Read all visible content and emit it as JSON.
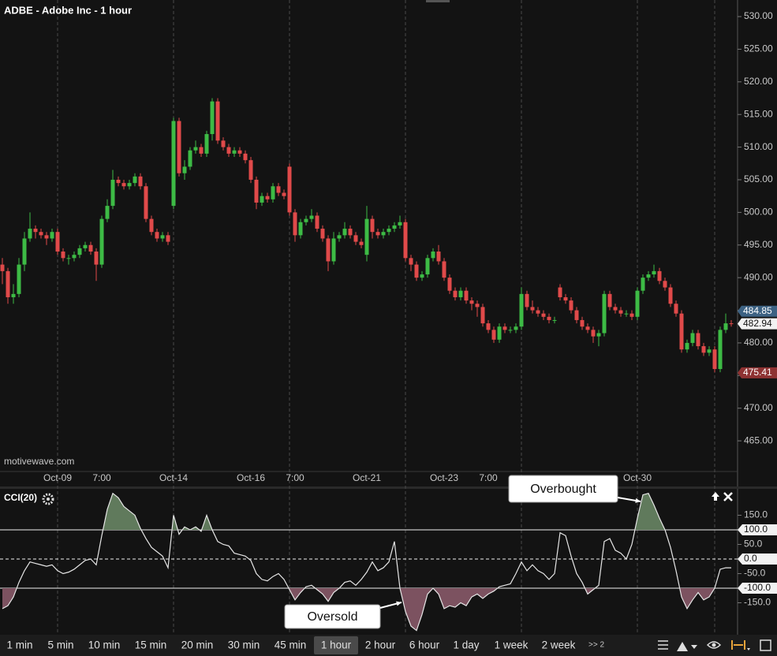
{
  "chart_data": [
    {
      "type": "candlestick",
      "title": "ADBE - Adobe Inc - 1 hour",
      "watermark": "motivewave.com",
      "up_color": "#3dbb45",
      "down_color": "#e04a4a",
      "ylim": [
        460.3,
        532.54
      ],
      "yticks": [
        {
          "value": 465,
          "label": "465.00"
        },
        {
          "value": 470,
          "label": "470.00"
        },
        {
          "value": 475,
          "label": "475.00"
        },
        {
          "value": 480,
          "label": "480.00"
        },
        {
          "value": 485,
          "label": "485.00"
        },
        {
          "value": 490,
          "label": "490.00"
        },
        {
          "value": 495,
          "label": "495.00"
        },
        {
          "value": 500,
          "label": "500.00"
        },
        {
          "value": 505,
          "label": "505.00"
        },
        {
          "value": 510,
          "label": "510.00"
        },
        {
          "value": 515,
          "label": "515.00"
        },
        {
          "value": 520,
          "label": "520.00"
        },
        {
          "value": 525,
          "label": "525.00"
        },
        {
          "value": 530,
          "label": "530.00"
        }
      ],
      "price_markers": [
        484.85,
        482.94,
        475.41
      ],
      "price_marker_colors": [
        "#3d6283",
        "#f2f2f2",
        "#8e3232"
      ],
      "categories": [
        null,
        null,
        null,
        null,
        null,
        null,
        null,
        null,
        null,
        null,
        "Oct-09",
        null,
        null,
        null,
        null,
        null,
        null,
        null,
        "7:00",
        null,
        null,
        null,
        null,
        null,
        null,
        null,
        null,
        null,
        null,
        null,
        null,
        "Oct-14",
        null,
        null,
        null,
        null,
        null,
        null,
        null,
        null,
        null,
        null,
        null,
        null,
        null,
        "Oct-16",
        null,
        null,
        null,
        null,
        null,
        null,
        null,
        "7:00",
        null,
        null,
        null,
        null,
        null,
        null,
        null,
        null,
        null,
        null,
        null,
        null,
        "Oct-21",
        null,
        null,
        null,
        null,
        null,
        null,
        null,
        null,
        null,
        null,
        null,
        null,
        null,
        "Oct-23",
        null,
        null,
        null,
        null,
        null,
        null,
        null,
        "7:00",
        null,
        null,
        null,
        null,
        null,
        null,
        null,
        null,
        null,
        null,
        null,
        null,
        null,
        null,
        null,
        null,
        null,
        null,
        null,
        null,
        null,
        null,
        null,
        null,
        null,
        null,
        "Oct-30",
        null,
        null,
        null,
        null,
        null,
        null,
        null,
        null,
        null,
        null,
        null,
        null,
        null,
        null,
        null,
        null,
        null
      ],
      "ohlc": [
        [
          492,
          493,
          489,
          491
        ],
        [
          491,
          491.5,
          486,
          487
        ],
        [
          487,
          489,
          486,
          487.5
        ],
        [
          487.5,
          493,
          487,
          492
        ],
        [
          492,
          497,
          491,
          496
        ],
        [
          496,
          500,
          495.5,
          497.5
        ],
        [
          497.5,
          498,
          496,
          497
        ],
        [
          497,
          497.5,
          496,
          496.5
        ],
        [
          496.5,
          497,
          495,
          496
        ],
        [
          496,
          497.5,
          495.5,
          497
        ],
        [
          497,
          497.5,
          493.5,
          494
        ],
        [
          494,
          494.5,
          492.5,
          493
        ],
        [
          493,
          493.5,
          492,
          493
        ],
        [
          493,
          494,
          492.5,
          493.5
        ],
        [
          493.5,
          495,
          493,
          494.5
        ],
        [
          494.5,
          495.5,
          494,
          495
        ],
        [
          495,
          495.5,
          493.5,
          494
        ],
        [
          494,
          494.5,
          489.5,
          492
        ],
        [
          492,
          499.5,
          491.5,
          499
        ],
        [
          499,
          502,
          498.5,
          501
        ],
        [
          501,
          506.5,
          500.5,
          505
        ],
        [
          505,
          505.5,
          504,
          504.5
        ],
        [
          504.5,
          505,
          503.5,
          504
        ],
        [
          504,
          505,
          503.5,
          504.5
        ],
        [
          504.5,
          506,
          504,
          505.5
        ],
        [
          505.5,
          506,
          503.5,
          504
        ],
        [
          504,
          504.5,
          498.5,
          499
        ],
        [
          499,
          499.5,
          496.5,
          497
        ],
        [
          497,
          497.5,
          495.5,
          496
        ],
        [
          496,
          497,
          495.5,
          496.5
        ],
        [
          496.5,
          497,
          495,
          495.5
        ],
        [
          501,
          514.5,
          500.5,
          514
        ],
        [
          514,
          514.5,
          505.5,
          506
        ],
        [
          506,
          508,
          505,
          507
        ],
        [
          507,
          510,
          506.5,
          509.5
        ],
        [
          509.5,
          511,
          509,
          510
        ],
        [
          510,
          510.5,
          508.5,
          509
        ],
        [
          509,
          512.5,
          508.5,
          512
        ],
        [
          512,
          517.5,
          511,
          517
        ],
        [
          517,
          517.5,
          510.5,
          511
        ],
        [
          511,
          511.5,
          509.5,
          510
        ],
        [
          510,
          510.5,
          508.5,
          509
        ],
        [
          509,
          510,
          508.5,
          509.5
        ],
        [
          509.5,
          510,
          508.5,
          509
        ],
        [
          509,
          509.5,
          507.5,
          508
        ],
        [
          508,
          508.5,
          504.5,
          505
        ],
        [
          505,
          505.5,
          500.5,
          501.5
        ],
        [
          501.5,
          503,
          501,
          502.5
        ],
        [
          502.5,
          503,
          501.5,
          502
        ],
        [
          502,
          504.5,
          501.5,
          504
        ],
        [
          504,
          504.5,
          502.5,
          503
        ],
        [
          503,
          503.5,
          502,
          502.5
        ],
        [
          507,
          507.5,
          499.5,
          500
        ],
        [
          500,
          500.5,
          495.5,
          496.5
        ],
        [
          496.5,
          499,
          496,
          498.5
        ],
        [
          498.5,
          499.5,
          498,
          499
        ],
        [
          499,
          500.5,
          498.5,
          499.5
        ],
        [
          499.5,
          500,
          497,
          497.5
        ],
        [
          497.5,
          498,
          495.5,
          496
        ],
        [
          496,
          496.5,
          491,
          492.5
        ],
        [
          492.5,
          497,
          492,
          496
        ],
        [
          496,
          497,
          495.5,
          496.5
        ],
        [
          496.5,
          498.5,
          496,
          497.5
        ],
        [
          497.5,
          498,
          496,
          496.5
        ],
        [
          496.5,
          497,
          495,
          495.5
        ],
        [
          495.5,
          496,
          494.5,
          495
        ],
        [
          493.5,
          501,
          492.5,
          499
        ],
        [
          499,
          499.5,
          496,
          497
        ],
        [
          497,
          497.5,
          496,
          496.5
        ],
        [
          496.5,
          497.5,
          496,
          497
        ],
        [
          497,
          498,
          496.5,
          497.5
        ],
        [
          497.5,
          498.5,
          497,
          498
        ],
        [
          498,
          499.5,
          497.5,
          498.5
        ],
        [
          498.5,
          499,
          492.5,
          493
        ],
        [
          493,
          493.5,
          491,
          492
        ],
        [
          492,
          492.5,
          489.5,
          490
        ],
        [
          490,
          491,
          489.5,
          490.5
        ],
        [
          490.5,
          493.5,
          490,
          493
        ],
        [
          493,
          494.5,
          492.5,
          494
        ],
        [
          494,
          495,
          492,
          492.5
        ],
        [
          492.5,
          493,
          489.5,
          490
        ],
        [
          490,
          490.5,
          487.5,
          488
        ],
        [
          488,
          488.5,
          486.5,
          487
        ],
        [
          487,
          488.5,
          486.5,
          488
        ],
        [
          488,
          488.5,
          486,
          486.5
        ],
        [
          486.5,
          487,
          485,
          486
        ],
        [
          486,
          486.5,
          484,
          485.5
        ],
        [
          485.5,
          486,
          482.5,
          483
        ],
        [
          483,
          483.5,
          481.5,
          482
        ],
        [
          482,
          482.5,
          480,
          480.5
        ],
        [
          480.5,
          483,
          480,
          482.5
        ],
        [
          482.5,
          483,
          481.5,
          482
        ],
        [
          482,
          482.5,
          481.5,
          482
        ],
        [
          482,
          483,
          481.5,
          482.5
        ],
        [
          482.5,
          488.5,
          482,
          487.5
        ],
        [
          487.5,
          488,
          485,
          485.5
        ],
        [
          485.5,
          486.5,
          484.5,
          485
        ],
        [
          485,
          485.5,
          484,
          484.5
        ],
        [
          484.5,
          485,
          483.5,
          484
        ],
        [
          484,
          484.5,
          483,
          483.5
        ],
        [
          483.5,
          484,
          483,
          483.5
        ],
        [
          488.5,
          489,
          486.5,
          487
        ],
        [
          487,
          487.5,
          486,
          486.5
        ],
        [
          486.5,
          487,
          484.5,
          485
        ],
        [
          485,
          485.5,
          483,
          483.5
        ],
        [
          483.5,
          484,
          482,
          482.5
        ],
        [
          482.5,
          483,
          481.5,
          482
        ],
        [
          482,
          482.5,
          480,
          481
        ],
        [
          481,
          482,
          479.5,
          481.5
        ],
        [
          481.5,
          488,
          481,
          487.5
        ],
        [
          487.5,
          488,
          485,
          485.5
        ],
        [
          485.5,
          486,
          484.5,
          485
        ],
        [
          485,
          485.5,
          484,
          484.5
        ],
        [
          484.5,
          485,
          484,
          484.5
        ],
        [
          484.5,
          485,
          483.5,
          484
        ],
        [
          484,
          488.5,
          483.5,
          488
        ],
        [
          488,
          490.5,
          487.5,
          490
        ],
        [
          490,
          491,
          489.5,
          490.5
        ],
        [
          490.5,
          492,
          490,
          491
        ],
        [
          491,
          491.5,
          489,
          489.5
        ],
        [
          489.5,
          490,
          488,
          488.5
        ],
        [
          488.5,
          489,
          485.5,
          486
        ],
        [
          486,
          486.5,
          484,
          484.5
        ],
        [
          484.5,
          485,
          478.5,
          479
        ],
        [
          479,
          480.5,
          478.5,
          480
        ],
        [
          480,
          482,
          479.5,
          481.5
        ],
        [
          481.5,
          482,
          479,
          479.5
        ],
        [
          479.5,
          480,
          478,
          478.5
        ],
        [
          478.5,
          479.5,
          478,
          479
        ],
        [
          479,
          479.5,
          475.5,
          476
        ],
        [
          476,
          482.5,
          475.5,
          482
        ],
        [
          482,
          484.5,
          481.5,
          483
        ],
        [
          483,
          483.5,
          482.5,
          482.94
        ]
      ]
    },
    {
      "type": "line",
      "title": "CCI(20)",
      "color": "#e6e6e6",
      "upper_fill": "#607a5c",
      "lower_fill": "#7c5260",
      "ylim": [
        -254,
        235
      ],
      "yticks": [
        {
          "value": 150,
          "label": "150.0"
        },
        {
          "value": 100,
          "label": "100.0"
        },
        {
          "value": 50,
          "label": "50.0"
        },
        {
          "value": 0,
          "label": "0.0"
        },
        {
          "value": -50,
          "label": "-50.0"
        },
        {
          "value": -100,
          "label": "-100.0"
        },
        {
          "value": -150,
          "label": "-150.0"
        }
      ],
      "levels": [
        100,
        0,
        -100
      ],
      "level_dashes": [
        false,
        true,
        false
      ],
      "annotations": [
        "Overbought",
        "Oversold"
      ],
      "values": [
        -170,
        -160,
        -130,
        -80,
        -40,
        -10,
        -15,
        -20,
        -25,
        -20,
        -40,
        -50,
        -45,
        -35,
        -20,
        -5,
        0,
        -20,
        80,
        170,
        225,
        210,
        180,
        165,
        150,
        105,
        70,
        40,
        25,
        10,
        -30,
        150,
        85,
        110,
        100,
        110,
        95,
        150,
        100,
        60,
        50,
        45,
        20,
        15,
        10,
        -5,
        -50,
        -70,
        -75,
        -60,
        -50,
        -70,
        -105,
        -140,
        -115,
        -95,
        -90,
        -105,
        -120,
        -145,
        -115,
        -100,
        -80,
        -75,
        -90,
        -70,
        -45,
        -10,
        -40,
        -30,
        -10,
        60,
        -100,
        -180,
        -230,
        -245,
        -190,
        -120,
        -100,
        -120,
        -170,
        -160,
        -165,
        -150,
        -160,
        -130,
        -120,
        -135,
        -120,
        -110,
        -95,
        -90,
        -85,
        -50,
        -10,
        -40,
        -20,
        -40,
        -50,
        -70,
        -50,
        90,
        80,
        10,
        -50,
        -80,
        -120,
        -105,
        -90,
        60,
        70,
        30,
        20,
        0,
        50,
        140,
        220,
        225,
        185,
        140,
        100,
        40,
        -40,
        -130,
        -170,
        -140,
        -115,
        -140,
        -130,
        -100,
        -35,
        -30,
        -30
      ]
    }
  ],
  "toolbar": {
    "timeframes": [
      "1 min",
      "5 min",
      "10 min",
      "15 min",
      "20 min",
      "30 min",
      "45 min",
      "1 hour",
      "2 hour",
      "6 hour",
      "1 day",
      "1 week",
      "2 week"
    ],
    "selected": 7,
    "more": ">> 2"
  }
}
